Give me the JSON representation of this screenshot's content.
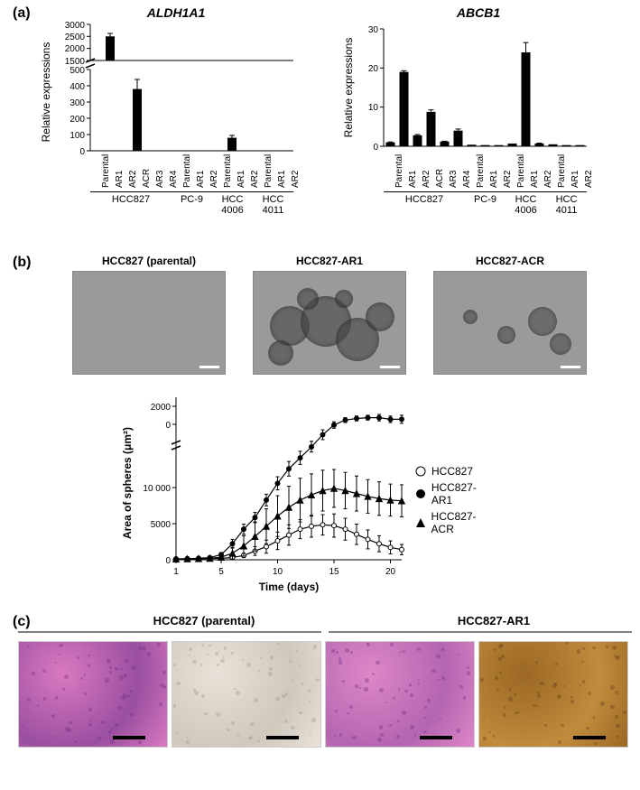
{
  "panels": {
    "a": {
      "label": "(a)"
    },
    "b": {
      "label": "(b)"
    },
    "c": {
      "label": "(c)"
    }
  },
  "panelA": {
    "chart1": {
      "type": "bar",
      "title": "ALDH1A1",
      "ylabel": "Relative expressions",
      "bar_color": "#000000",
      "background_color": "#ffffff",
      "categories": [
        "Parental",
        "AR1",
        "AR2",
        "ACR",
        "AR3",
        "AR4",
        "Parental",
        "AR1",
        "AR2",
        "Parental",
        "AR1",
        "AR2",
        "Parental",
        "AR1",
        "AR2"
      ],
      "values": [
        1,
        2500,
        1,
        380,
        1,
        1,
        1,
        1,
        1,
        1,
        80,
        1,
        1,
        1,
        1
      ],
      "errors": [
        0,
        120,
        0,
        60,
        0,
        0,
        0,
        0,
        0,
        0,
        15,
        0,
        0,
        0,
        0
      ],
      "axis_break": {
        "lower_max": 500,
        "upper_min": 1500,
        "upper_max": 3000
      },
      "groups": [
        {
          "label": "HCC827",
          "span": 6
        },
        {
          "label": "PC-9",
          "span": 3
        },
        {
          "label": "HCC\n4006",
          "span": 3
        },
        {
          "label": "HCC\n4011",
          "span": 3
        }
      ],
      "ylim_lower": [
        0,
        500
      ],
      "ylim_upper": [
        1500,
        3000
      ],
      "ytick_lower": [
        0,
        100,
        200,
        300,
        400,
        500
      ],
      "ytick_upper": [
        1500,
        2000,
        2500,
        3000
      ],
      "label_fontsize": 12,
      "title_fontsize": 14
    },
    "chart2": {
      "type": "bar",
      "title": "ABCB1",
      "ylabel": "Relative expressions",
      "bar_color": "#000000",
      "background_color": "#ffffff",
      "categories": [
        "Parental",
        "AR1",
        "AR2",
        "ACR",
        "AR3",
        "AR4",
        "Parental",
        "AR1",
        "AR2",
        "Parental",
        "AR1",
        "AR2",
        "Parental",
        "AR1",
        "AR2"
      ],
      "values": [
        1,
        19,
        2.8,
        8.8,
        1.2,
        4,
        0.4,
        0.3,
        0.3,
        0.7,
        24,
        0.7,
        0.5,
        0.3,
        0.3
      ],
      "errors": [
        0.1,
        0.3,
        0.2,
        0.5,
        0.1,
        0.4,
        0,
        0,
        0,
        0,
        2.5,
        0.1,
        0,
        0,
        0
      ],
      "groups": [
        {
          "label": "HCC827",
          "span": 6
        },
        {
          "label": "PC-9",
          "span": 3
        },
        {
          "label": "HCC\n4006",
          "span": 3
        },
        {
          "label": "HCC\n4011",
          "span": 3
        }
      ],
      "ylim": [
        0,
        30
      ],
      "ytick_step": 10,
      "label_fontsize": 12,
      "title_fontsize": 14
    }
  },
  "panelB": {
    "micrographs": [
      {
        "label": "HCC827 (parental)",
        "bg": "#8f8f8f"
      },
      {
        "label": "HCC827-AR1",
        "bg": "#8a8a8a"
      },
      {
        "label": "HCC827-ACR",
        "bg": "#8d8d8d"
      }
    ],
    "growth_chart": {
      "type": "line",
      "xlabel": "Time (days)",
      "ylabel": "Area of spheres (μm²)",
      "xlim": [
        1,
        21
      ],
      "ylim": [
        0,
        20000
      ],
      "xtick_step": 5,
      "ytick_values": [
        0,
        5000,
        10000,
        "",
        "2000"
      ],
      "axis_break_y": 15500,
      "series": [
        {
          "name": "HCC827",
          "marker": "circle-open",
          "color": "#000000",
          "fill": "#ffffff",
          "x": [
            1,
            2,
            3,
            4,
            5,
            6,
            7,
            8,
            9,
            10,
            11,
            12,
            13,
            14,
            15,
            16,
            17,
            18,
            19,
            20,
            21
          ],
          "y": [
            100,
            120,
            140,
            160,
            200,
            300,
            600,
            1200,
            1800,
            2600,
            3400,
            4200,
            4600,
            4800,
            4700,
            4200,
            3500,
            2800,
            2200,
            1700,
            1400
          ],
          "err": [
            50,
            50,
            60,
            80,
            100,
            150,
            300,
            600,
            900,
            1200,
            1400,
            1300,
            1500,
            1400,
            1600,
            1500,
            1400,
            1300,
            1100,
            900,
            700
          ]
        },
        {
          "name": "HCC827-AR1",
          "marker": "circle-filled",
          "color": "#000000",
          "fill": "#000000",
          "x": [
            1,
            2,
            3,
            4,
            5,
            6,
            7,
            8,
            9,
            10,
            11,
            12,
            13,
            14,
            15,
            16,
            17,
            18,
            19,
            20,
            21
          ],
          "y": [
            120,
            150,
            200,
            300,
            700,
            2200,
            4200,
            5800,
            8200,
            10500,
            12500,
            14000,
            15500,
            17000,
            18200,
            18800,
            19000,
            19100,
            19100,
            18900,
            18900
          ],
          "err": [
            60,
            60,
            80,
            120,
            300,
            600,
            700,
            700,
            800,
            900,
            1000,
            900,
            700,
            600,
            400,
            300,
            300,
            300,
            400,
            400,
            500
          ]
        },
        {
          "name": "HCC827-ACR",
          "marker": "triangle-filled",
          "color": "#000000",
          "fill": "#000000",
          "x": [
            1,
            2,
            3,
            4,
            5,
            6,
            7,
            8,
            9,
            10,
            11,
            12,
            13,
            14,
            15,
            16,
            17,
            18,
            19,
            20,
            21
          ],
          "y": [
            110,
            130,
            160,
            200,
            350,
            900,
            1900,
            3200,
            4600,
            6000,
            7200,
            8200,
            8900,
            9500,
            9800,
            9500,
            9100,
            8700,
            8400,
            8200,
            8100
          ],
          "err": [
            60,
            60,
            80,
            120,
            300,
            800,
            1400,
            2000,
            2400,
            2800,
            2900,
            3000,
            2900,
            2800,
            2600,
            2500,
            2400,
            2300,
            2300,
            2200,
            2200
          ]
        }
      ],
      "background_color": "#ffffff",
      "line_width": 1.2,
      "marker_size": 5,
      "label_fontsize": 12
    }
  },
  "panelC": {
    "label_left": "HCC827 (parental)",
    "label_right": "HCC827-AR1",
    "images": [
      {
        "type": "HE",
        "bg1": "#d979c0",
        "bg2": "#9a4fa0"
      },
      {
        "type": "IHC",
        "bg1": "#e8e2d8",
        "bg2": "#cfc8bb"
      },
      {
        "type": "HE",
        "bg1": "#dd87c7",
        "bg2": "#b465b0"
      },
      {
        "type": "IHC",
        "bg1": "#9b6824",
        "bg2": "#c08b3c"
      }
    ]
  }
}
